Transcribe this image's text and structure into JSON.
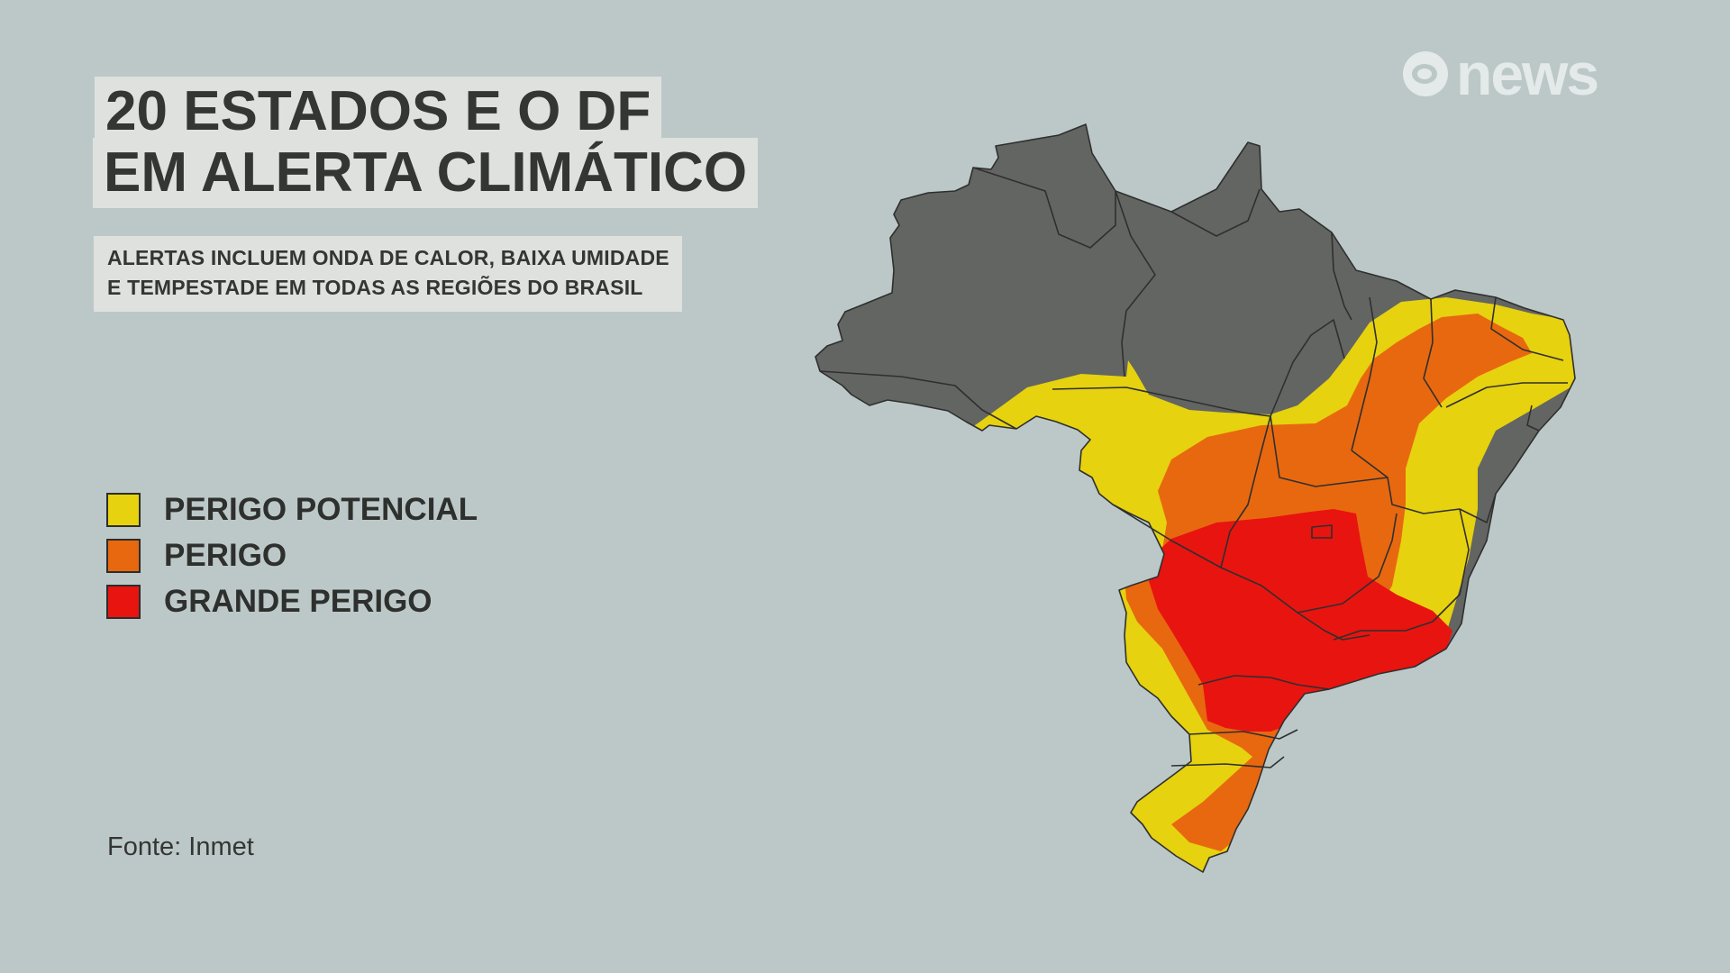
{
  "title": {
    "line1": "20 ESTADOS E O DF",
    "line2": "EM ALERTA CLIMÁTICO"
  },
  "subtitle": {
    "line1": "ALERTAS INCLUEM ONDA DE CALOR, BAIXA UMIDADE",
    "line2": "E TEMPESTADE EM TODAS AS REGIÕES DO BRASIL"
  },
  "legend": [
    {
      "label": "PERIGO POTENCIAL",
      "color": "#e6d20e"
    },
    {
      "label": "PERIGO",
      "color": "#e8680f"
    },
    {
      "label": "GRANDE PERIGO",
      "color": "#e81410"
    }
  ],
  "source": "Fonte: Inmet",
  "logo": {
    "text": "news",
    "icon": "globo-icon"
  },
  "colors": {
    "background": "#bcc8c8",
    "no_alert": "#636563",
    "state_border": "#2f2f2f"
  }
}
